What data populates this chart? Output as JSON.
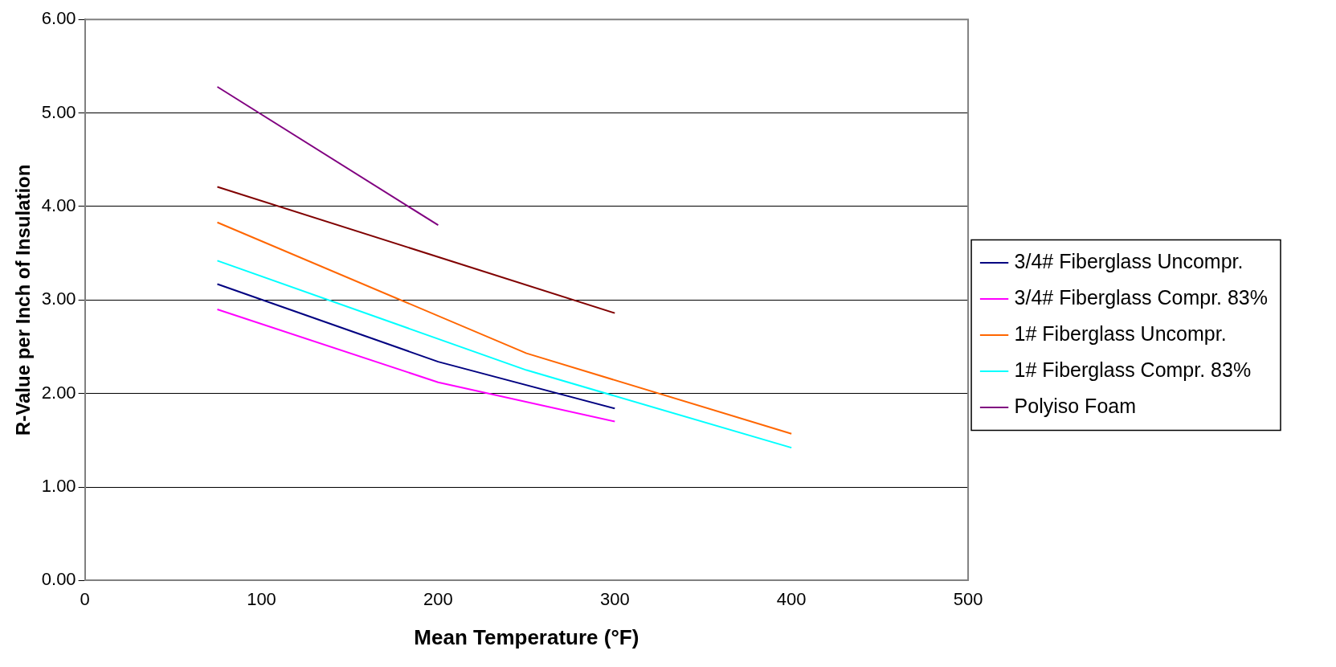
{
  "chart_data": {
    "type": "line",
    "xlabel": "Mean Temperature (°F)",
    "ylabel": "R-Value per Inch of Insulation",
    "xlim": [
      0,
      500
    ],
    "xticks": [
      0,
      100,
      200,
      300,
      400,
      500
    ],
    "ylim": [
      0,
      6
    ],
    "yticks": [
      {
        "value": 0,
        "label": "0.00"
      },
      {
        "value": 1,
        "label": "1.00"
      },
      {
        "value": 2,
        "label": "2.00"
      },
      {
        "value": 3,
        "label": "3.00"
      },
      {
        "value": 4,
        "label": "4.00"
      },
      {
        "value": 5,
        "label": "5.00"
      },
      {
        "value": 6,
        "label": "6.00"
      }
    ],
    "grid": "y",
    "legend": "right",
    "marker": "none",
    "line_style": "solid",
    "series": [
      {
        "name": "3/4# Fiberglass Uncompr.",
        "color": "#000080",
        "x": [
          75,
          200,
          300
        ],
        "values": [
          3.17,
          2.34,
          1.84
        ]
      },
      {
        "name": "3/4# Fiberglass Compr. 83%",
        "color": "#ff00ff",
        "x": [
          75,
          200,
          300
        ],
        "values": [
          2.9,
          2.12,
          1.7
        ]
      },
      {
        "name": "1# Fiberglass Uncompr.",
        "color": "#ff6600",
        "x": [
          75,
          250,
          400
        ],
        "values": [
          3.83,
          2.43,
          1.57
        ]
      },
      {
        "name": "1# Fiberglass Compr. 83%",
        "color": "#00ffff",
        "x": [
          75,
          250,
          400
        ],
        "values": [
          3.42,
          2.25,
          1.42
        ]
      },
      {
        "name": "Polyiso Foam",
        "color": "#800080",
        "x": [
          75,
          200
        ],
        "values": [
          5.28,
          3.8
        ]
      },
      {
        "color": "#800000",
        "x": [
          75,
          300
        ],
        "values": [
          4.21,
          2.86
        ]
      }
    ]
  }
}
